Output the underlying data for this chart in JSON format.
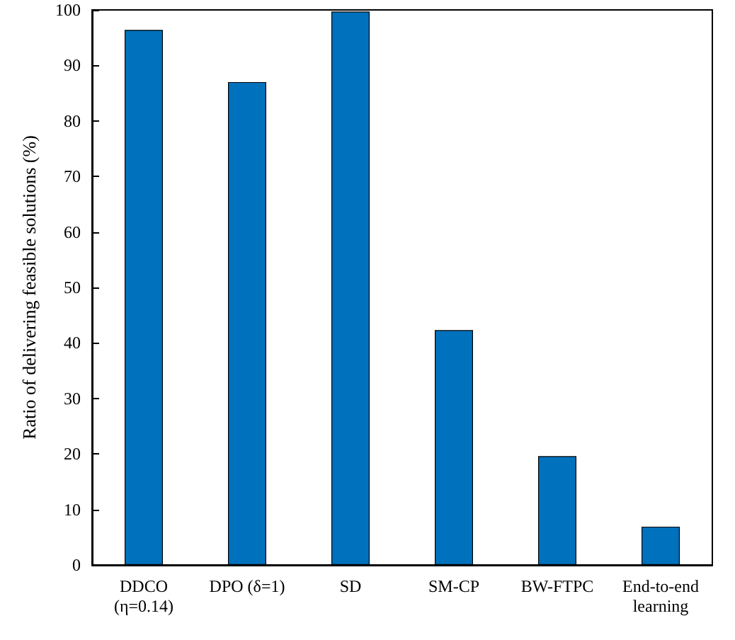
{
  "chart_data": {
    "type": "bar",
    "ylabel": "Ratio of delivering feasible solutions (%)",
    "categories": [
      "DDCO\n(η=0.14)",
      "DPO (δ=1)",
      "SD",
      "SM-CP",
      "BW-FTPC",
      "End-to-end\nlearning"
    ],
    "values": [
      96.4,
      87.0,
      99.7,
      42.3,
      19.6,
      6.9
    ],
    "color": "#0072bd",
    "ylim": [
      0,
      100
    ],
    "yticks": [
      0,
      10,
      20,
      30,
      40,
      50,
      60,
      70,
      80,
      90,
      100
    ],
    "grid": false
  }
}
